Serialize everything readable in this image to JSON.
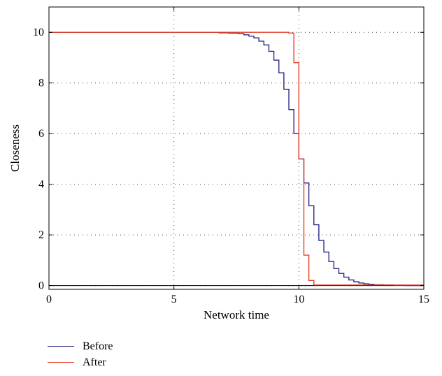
{
  "chart_data": {
    "type": "line",
    "step": true,
    "xlabel": "Network time",
    "ylabel": "Closeness",
    "xlim": [
      0,
      15
    ],
    "ylim": [
      -0.15,
      11
    ],
    "xticks": [
      0,
      5,
      10,
      15
    ],
    "yticks": [
      0,
      2,
      4,
      6,
      8,
      10
    ],
    "xtick_labels": [
      "0",
      "5",
      "10",
      "15"
    ],
    "ytick_labels": [
      "0",
      "2",
      "4",
      "6",
      "8",
      "10"
    ],
    "grid": "dotted",
    "legend_position": "below-left",
    "series": [
      {
        "name": "Before",
        "color": "#2b2a8a",
        "x": [
          0,
          6.8,
          7.2,
          7.6,
          7.8,
          8.0,
          8.2,
          8.4,
          8.6,
          8.8,
          9.0,
          9.2,
          9.4,
          9.6,
          9.8,
          10.0,
          10.2,
          10.4,
          10.6,
          10.8,
          11.0,
          11.2,
          11.4,
          11.6,
          11.8,
          12.0,
          12.2,
          12.4,
          12.6,
          12.8,
          13.0,
          13.4,
          13.8,
          14.2,
          15.0
        ],
        "y": [
          10,
          9.98,
          9.97,
          9.95,
          9.9,
          9.85,
          9.78,
          9.65,
          9.5,
          9.25,
          8.9,
          8.4,
          7.75,
          6.95,
          6.0,
          5.0,
          4.05,
          3.15,
          2.4,
          1.78,
          1.32,
          0.95,
          0.67,
          0.48,
          0.33,
          0.22,
          0.15,
          0.1,
          0.07,
          0.05,
          0.03,
          0.02,
          0.01,
          0.0,
          0.0
        ]
      },
      {
        "name": "After",
        "color": "#e8402a",
        "x": [
          0,
          9.0,
          9.4,
          9.6,
          9.8,
          10.0,
          10.2,
          10.4,
          10.6,
          15.0
        ],
        "y": [
          10,
          10.0,
          10.0,
          9.97,
          8.8,
          5.0,
          1.2,
          0.2,
          0.02,
          0.0
        ]
      }
    ],
    "hline": 0
  }
}
